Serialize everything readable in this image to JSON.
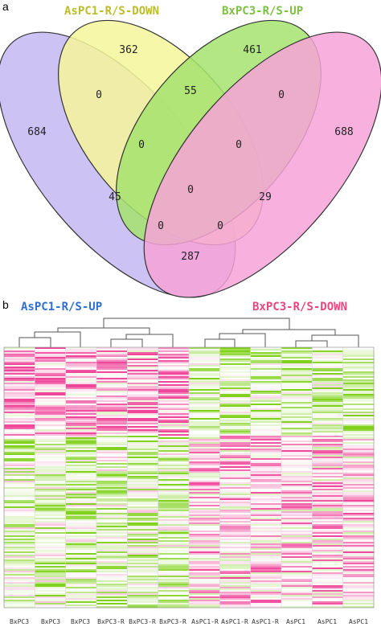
{
  "panel_a": {
    "letter": "a",
    "sets": [
      {
        "name": "AsPC1-R/S-DOWN",
        "color": "#bdbd2a",
        "fill": "#f6f69b"
      },
      {
        "name": "BxPC3-R/S-UP",
        "color": "#7cc142",
        "fill": "#a6e36e"
      },
      {
        "name": "AsPC1-R/S-UP",
        "color": "#3a7fd4",
        "fill": "#c3b8f2"
      },
      {
        "name": "BxPC3-R/S-DOWN",
        "color": "#ec5f91",
        "fill": "#f7a3d8"
      }
    ],
    "regions": {
      "only_asdown": "362",
      "only_bxup": "461",
      "only_asup": "684",
      "only_bxdown": "688",
      "asdown_bxup": "55",
      "asup_asdown": "0",
      "bxup_bxdown": "0",
      "asup_asdown_bxup": "0",
      "asdown_bxup_bxdown": "0",
      "all_four": "0",
      "asup_bxup": "45",
      "asdown_bxdown": "29",
      "asup_bxup_bxdown": "0",
      "asup_asdown_bxdown": "0",
      "asup_bxdown": "287"
    }
  },
  "panel_b": {
    "letter": "b",
    "left_label": "AsPC1-R/S-UP",
    "right_label": "BxPC3-R/S-DOWN",
    "left_label_color": "#2e6fd0",
    "right_label_color": "#e8467f",
    "columns": [
      "BxPC3",
      "BxPC3",
      "BxPC3",
      "BxPC3-R",
      "BxPC3-R",
      "BxPC3-R",
      "AsPC1-R",
      "AsPC1-R",
      "AsPC1-R",
      "AsPC1",
      "AsPC1",
      "AsPC1"
    ],
    "colors": {
      "low": "#7fd11a",
      "mid": "#ffffff",
      "high": "#f0469a"
    }
  }
}
